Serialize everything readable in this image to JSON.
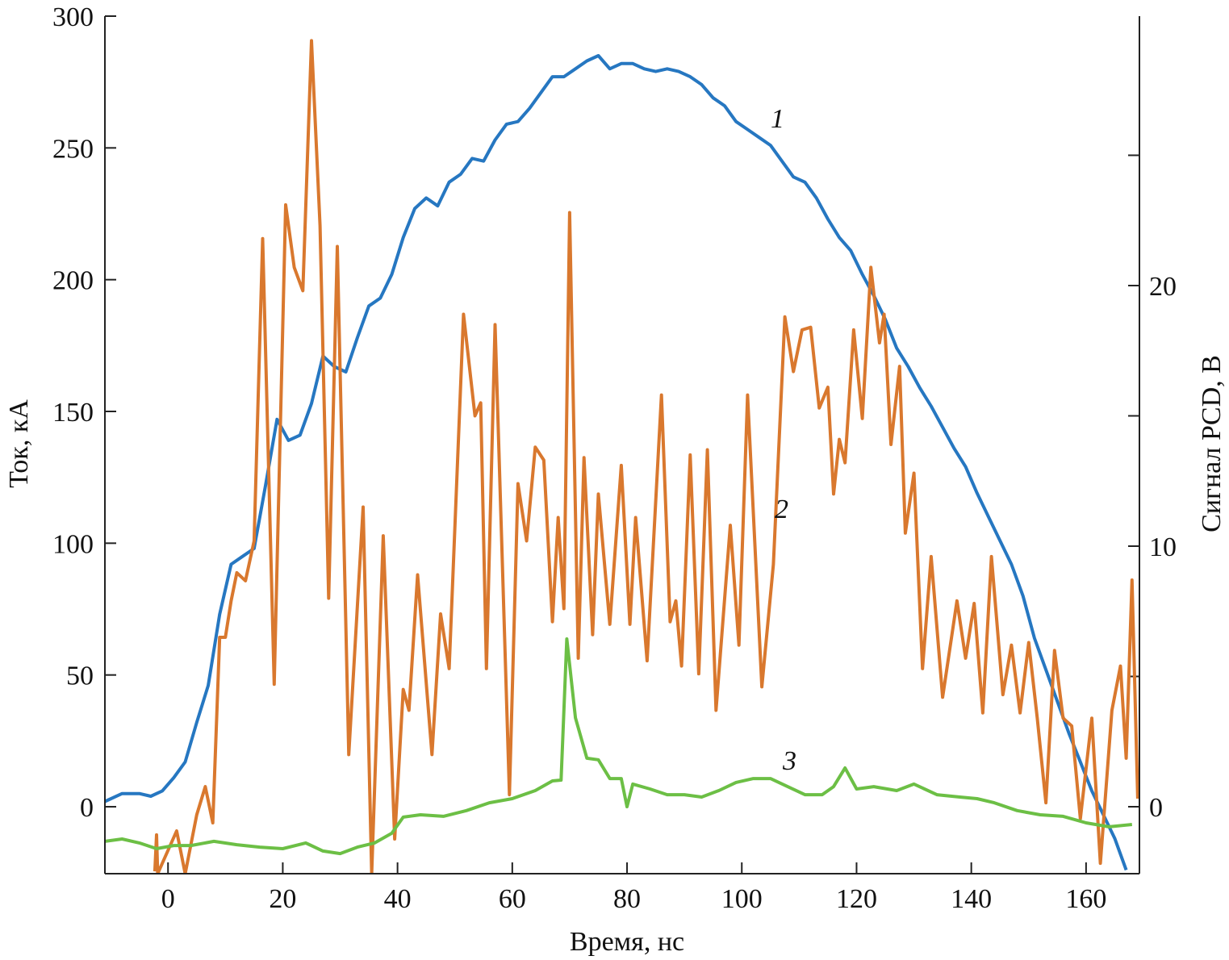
{
  "chart_data": {
    "type": "line",
    "x_label": "Время, нс",
    "y_label": "Ток, кА",
    "y2_label": "Сигнал PCD, В",
    "xlim": [
      -11,
      169.3
    ],
    "xticks": [
      0,
      20,
      40,
      60,
      80,
      100,
      120,
      140,
      160
    ],
    "ylim": [
      -25.4,
      300
    ],
    "yticks": [
      0,
      50,
      100,
      150,
      200,
      250,
      300
    ],
    "y2lim": [
      -2.57,
      30.34
    ],
    "y2ticks": [
      0,
      10,
      20
    ],
    "y2minor_ticks": [
      5,
      15,
      25
    ],
    "series": [
      {
        "name": "1",
        "color": "#2677c1",
        "axis": "y",
        "x": [
          -11,
          -8,
          -5,
          -3,
          -1,
          1,
          3,
          5,
          7,
          9,
          11,
          13,
          15,
          17,
          19,
          21,
          23,
          25,
          27,
          29,
          31,
          33,
          35,
          37,
          39,
          41,
          43,
          45,
          47,
          49,
          51,
          53,
          55,
          57,
          59,
          61,
          63,
          65,
          67,
          69,
          71,
          73,
          75,
          77,
          79,
          81,
          83,
          85,
          87,
          89,
          91,
          93,
          95,
          97,
          99,
          101,
          103,
          105,
          107,
          109,
          111,
          113,
          115,
          117,
          119,
          121,
          123,
          125,
          127,
          129,
          131,
          133,
          135,
          137,
          139,
          141,
          143,
          145,
          147,
          149,
          151,
          153,
          155,
          157,
          159,
          161,
          163,
          165,
          167
        ],
        "values": [
          2,
          5,
          5,
          4,
          6,
          11,
          17,
          32,
          46,
          73,
          92,
          95,
          98,
          122,
          147,
          139,
          141,
          153,
          171,
          167,
          165,
          178,
          190,
          193,
          202,
          216,
          227,
          231,
          228,
          237,
          240,
          246,
          245,
          253,
          259,
          260,
          265,
          271,
          277,
          277,
          280,
          283,
          285,
          280,
          282,
          282,
          280,
          279,
          280,
          279,
          277,
          274,
          269,
          266,
          260,
          257,
          254,
          251,
          245,
          239,
          237,
          231,
          223,
          216,
          211,
          202,
          194,
          185,
          174,
          167,
          159,
          152,
          144,
          136,
          129,
          119,
          110,
          101,
          92,
          80,
          64,
          52,
          40,
          28,
          17,
          6,
          -3,
          -12,
          -24
        ]
      },
      {
        "name": "2",
        "color": "#d9782e",
        "axis": "y2",
        "x": [
          -2.3,
          -2,
          -1.8,
          1.5,
          3,
          5,
          6.5,
          7.8,
          9,
          10,
          11,
          12,
          13.5,
          15,
          16.5,
          18.5,
          20.5,
          22,
          23.5,
          25,
          26.5,
          28,
          29.5,
          31.5,
          34,
          35.5,
          37.5,
          39.5,
          41,
          42,
          43.5,
          46,
          47.5,
          49,
          51.5,
          53.5,
          54.5,
          55.5,
          57,
          59.5,
          61,
          62.5,
          64,
          65.5,
          67,
          68,
          69,
          70,
          71.5,
          72.5,
          74,
          75,
          77,
          79,
          80.5,
          81.5,
          83.5,
          86,
          87.5,
          88.5,
          89.5,
          91,
          92.5,
          94,
          95.5,
          98,
          99.5,
          101,
          103.5,
          105.5,
          107.5,
          109,
          110.5,
          112,
          113.5,
          115,
          116,
          117,
          118,
          119.5,
          121,
          122.5,
          124,
          124.8,
          126,
          127.5,
          128.5,
          130,
          131.5,
          133,
          135,
          137.5,
          139,
          140.5,
          142,
          143.5,
          145.5,
          147,
          148.5,
          150,
          151.5,
          153,
          154.5,
          156,
          157.5,
          159,
          161,
          162.5,
          164.5,
          166,
          167,
          168,
          169
        ],
        "values": [
          -2.48,
          -1.08,
          -2.57,
          -0.93,
          -2.57,
          -0.31,
          0.77,
          -0.62,
          6.5,
          6.5,
          7.9,
          8.98,
          8.67,
          10.2,
          21.8,
          4.7,
          23.1,
          20.7,
          19.8,
          29.4,
          22.3,
          8.0,
          21.5,
          2.0,
          11.5,
          -2.57,
          10.4,
          -1.24,
          4.5,
          3.7,
          8.9,
          2.0,
          7.4,
          5.3,
          18.9,
          15.0,
          15.5,
          5.3,
          18.5,
          0.46,
          12.4,
          10.2,
          13.8,
          13.3,
          7.1,
          11.1,
          7.6,
          22.8,
          5.7,
          13.4,
          6.6,
          12.0,
          7.0,
          13.1,
          7.0,
          11.1,
          5.6,
          15.8,
          7.1,
          7.9,
          5.4,
          13.5,
          5.1,
          13.7,
          3.7,
          10.8,
          6.2,
          15.8,
          4.6,
          9.3,
          18.8,
          16.7,
          18.3,
          18.4,
          15.3,
          16.1,
          12.0,
          14.1,
          13.2,
          18.3,
          14.9,
          20.7,
          17.8,
          18.9,
          13.9,
          16.9,
          10.5,
          12.8,
          5.3,
          9.6,
          4.2,
          7.9,
          5.7,
          7.8,
          3.6,
          9.6,
          4.3,
          6.2,
          3.6,
          6.3,
          3.4,
          0.15,
          6.0,
          3.4,
          3.1,
          -0.46,
          3.4,
          -2.17,
          3.7,
          5.4,
          1.86,
          8.7,
          0.31
        ]
      },
      {
        "name": "3",
        "color": "#6cbf45",
        "axis": "y2",
        "x": [
          -11,
          -8,
          -5,
          -2,
          1,
          4,
          8,
          12,
          16,
          20,
          24,
          27,
          30,
          33,
          36,
          39,
          41,
          44,
          48,
          52,
          56,
          60,
          64,
          67,
          68.5,
          69.5,
          71,
          73,
          75,
          77,
          79,
          80,
          81,
          84,
          87,
          90,
          93,
          96,
          99,
          102,
          105,
          108,
          111,
          114,
          116,
          118,
          120,
          123,
          127,
          130,
          134,
          138,
          141,
          144,
          148,
          152,
          156,
          160,
          164,
          168
        ],
        "values": [
          -1.33,
          -1.24,
          -1.39,
          -1.61,
          -1.49,
          -1.49,
          -1.33,
          -1.46,
          -1.55,
          -1.61,
          -1.39,
          -1.7,
          -1.8,
          -1.55,
          -1.39,
          -1.02,
          -0.4,
          -0.31,
          -0.37,
          -0.15,
          0.15,
          0.31,
          0.62,
          0.99,
          1.02,
          6.44,
          3.41,
          1.86,
          1.8,
          1.08,
          1.08,
          0,
          0.87,
          0.68,
          0.46,
          0.46,
          0.37,
          0.62,
          0.93,
          1.08,
          1.08,
          0.77,
          0.46,
          0.46,
          0.77,
          1.49,
          0.68,
          0.77,
          0.62,
          0.87,
          0.46,
          0.37,
          0.31,
          0.15,
          -0.15,
          -0.31,
          -0.37,
          -0.62,
          -0.77,
          -0.68
        ]
      }
    ]
  }
}
